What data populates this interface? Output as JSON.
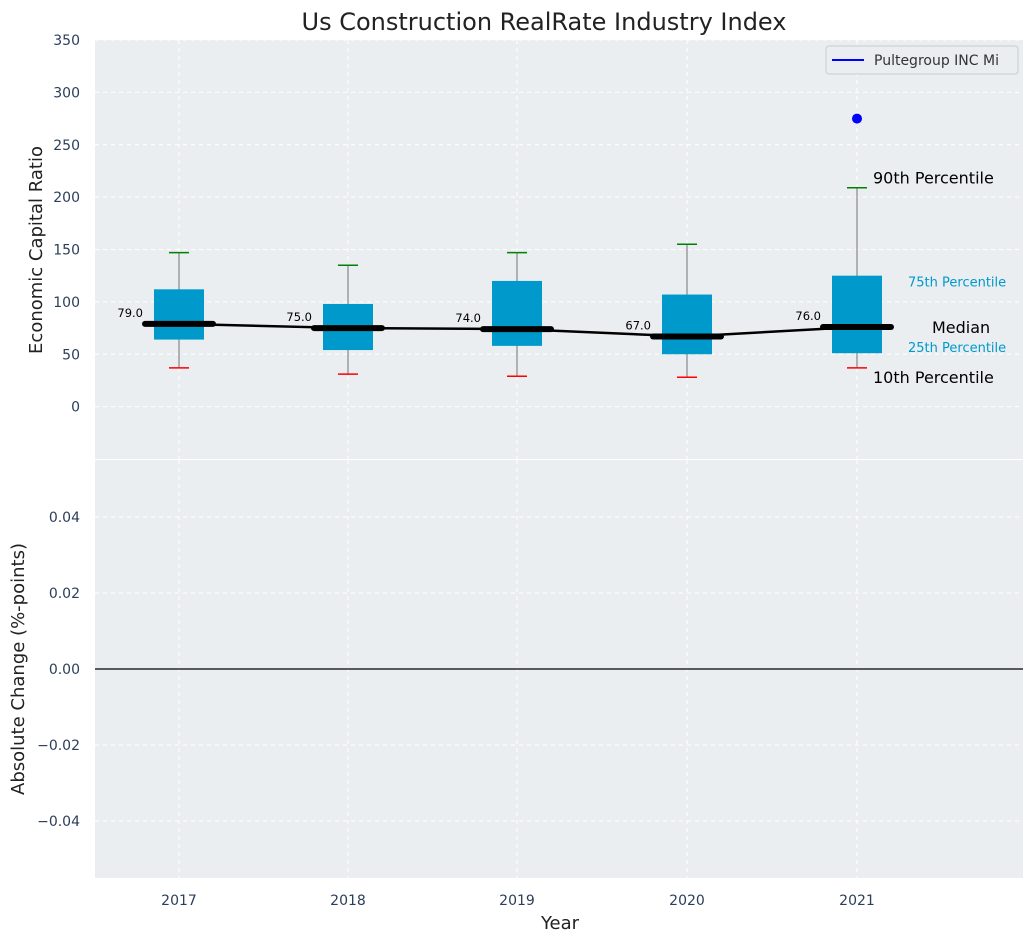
{
  "chart_data": [
    {
      "type": "box",
      "title": "Us Construction RealRate Industry Index",
      "ylabel": "Economic Capital Ratio",
      "xlabel": "",
      "ylim": [
        -50,
        350
      ],
      "yticks": [
        0,
        50,
        100,
        150,
        200,
        250,
        300,
        350
      ],
      "grid": true,
      "legend": {
        "placement": "top-right",
        "entries": [
          {
            "name": "Pultegroup INC Mi",
            "color": "#0000ff"
          }
        ]
      },
      "categories": [
        "2017",
        "2018",
        "2019",
        "2020",
        "2021"
      ],
      "p10": [
        37,
        31,
        29,
        28,
        37
      ],
      "p25": [
        64,
        54,
        58,
        50,
        51
      ],
      "median": [
        79,
        75,
        74,
        67,
        76
      ],
      "p75": [
        112,
        98,
        120,
        107,
        125
      ],
      "p90": [
        147,
        135,
        147,
        155,
        209
      ],
      "median_labels": [
        "79.0",
        "75.0",
        "74.0",
        "67.0",
        "76.0"
      ],
      "company_points": [
        {
          "category": "2021",
          "value": 275
        }
      ],
      "annotations": {
        "p90": "90th Percentile",
        "p75": "75th Percentile",
        "median": "Median",
        "p25": "25th Percentile",
        "p10": "10th Percentile"
      },
      "colors": {
        "box": "#0099cc",
        "median": "#000000",
        "p90_whisker": "#008000",
        "p10_whisker": "#ff0000",
        "company": "#0000ff",
        "background": "#eaeef0"
      }
    },
    {
      "type": "line",
      "title": "",
      "ylabel": "Absolute Change (%-points)",
      "xlabel": "Year",
      "ylim": [
        -0.055,
        0.055
      ],
      "yticks": [
        "−0.04",
        "−0.02",
        "0.00",
        "0.02",
        "0.04"
      ],
      "ytick_values": [
        -0.04,
        -0.02,
        0,
        0.02,
        0.04
      ],
      "categories": [
        "2017",
        "2018",
        "2019",
        "2020",
        "2021"
      ],
      "zero_line": true,
      "grid": true
    }
  ]
}
